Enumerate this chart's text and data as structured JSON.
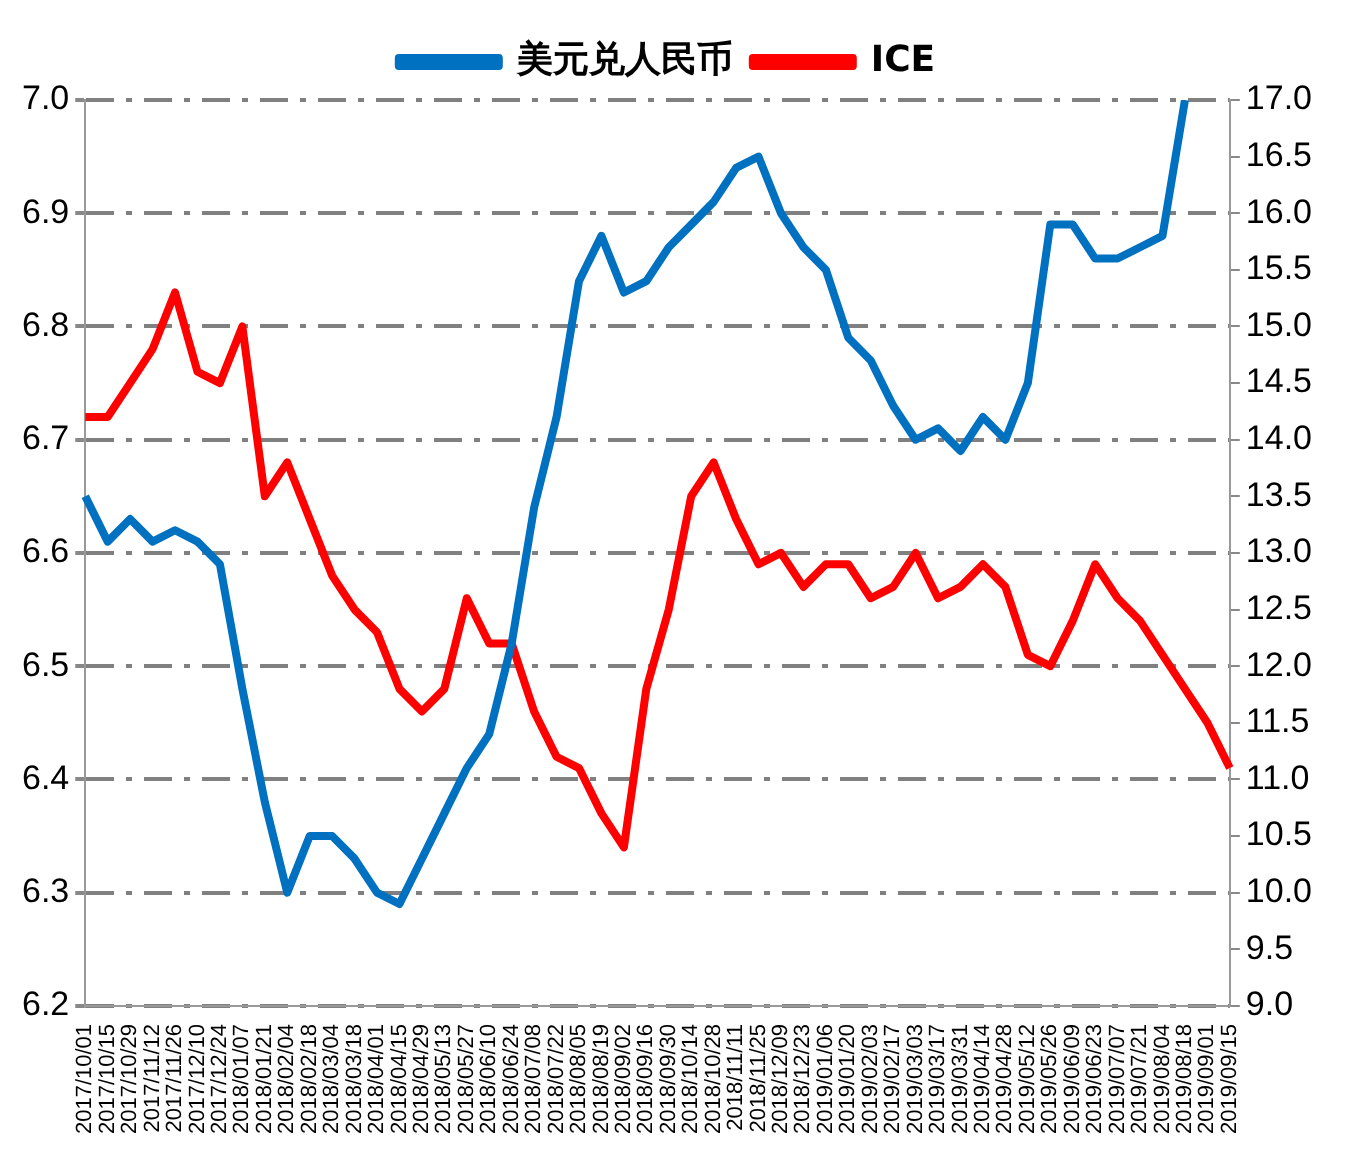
{
  "chart_data": {
    "type": "line",
    "categories": [
      "2017/10/01",
      "2017/10/15",
      "2017/10/29",
      "2017/11/12",
      "2017/11/26",
      "2017/12/10",
      "2017/12/24",
      "2018/01/07",
      "2018/01/21",
      "2018/02/04",
      "2018/02/18",
      "2018/03/04",
      "2018/03/18",
      "2018/04/01",
      "2018/04/15",
      "2018/04/29",
      "2018/05/13",
      "2018/05/27",
      "2018/06/10",
      "2018/06/24",
      "2018/07/08",
      "2018/07/22",
      "2018/08/05",
      "2018/08/19",
      "2018/09/02",
      "2018/09/16",
      "2018/09/30",
      "2018/10/14",
      "2018/10/28",
      "2018/11/11",
      "2018/11/25",
      "2018/12/09",
      "2018/12/23",
      "2019/01/06",
      "2019/01/20",
      "2019/02/03",
      "2019/02/17",
      "2019/03/03",
      "2019/03/17",
      "2019/03/31",
      "2019/04/14",
      "2019/04/28",
      "2019/05/12",
      "2019/05/26",
      "2019/06/09",
      "2019/06/23",
      "2019/07/07",
      "2019/07/21",
      "2019/08/04",
      "2019/08/18",
      "2019/09/01",
      "2019/09/15"
    ],
    "series": [
      {
        "name": "美元兑人民币",
        "color": "#0070c0",
        "values": [
          6.65,
          6.61,
          6.63,
          6.61,
          6.62,
          6.61,
          6.59,
          6.48,
          6.38,
          6.3,
          6.35,
          6.35,
          6.33,
          6.3,
          6.29,
          6.33,
          6.37,
          6.41,
          6.44,
          6.52,
          6.64,
          6.72,
          6.84,
          6.88,
          6.83,
          6.84,
          6.87,
          6.89,
          6.91,
          6.94,
          6.95,
          6.9,
          6.87,
          6.85,
          6.79,
          6.77,
          6.73,
          6.7,
          6.71,
          6.69,
          6.72,
          6.7,
          6.75,
          6.89,
          6.89,
          6.86,
          6.86,
          6.87,
          6.88,
          7.0,
          null,
          null
        ]
      },
      {
        "name": "ICE",
        "color": "#ff0000",
        "axis": "y2",
        "values": [
          14.2,
          14.2,
          14.5,
          14.8,
          15.3,
          14.6,
          14.5,
          15.0,
          13.5,
          13.8,
          13.3,
          12.8,
          12.5,
          12.3,
          11.8,
          11.6,
          11.8,
          12.6,
          12.2,
          12.2,
          11.6,
          11.2,
          11.1,
          10.7,
          10.4,
          11.8,
          12.5,
          13.5,
          13.8,
          13.3,
          12.9,
          13.0,
          12.7,
          12.9,
          12.9,
          12.6,
          12.7,
          13.0,
          12.6,
          12.7,
          12.9,
          12.7,
          12.1,
          12.0,
          12.4,
          12.9,
          12.6,
          12.4,
          12.1,
          11.8,
          11.5,
          11.1
        ]
      }
    ],
    "ylim": [
      6.2,
      7.0
    ],
    "yticks": [
      6.2,
      6.3,
      6.4,
      6.5,
      6.6,
      6.7,
      6.8,
      6.9,
      {
        "value": 7,
        "label": "7.0"
      }
    ],
    "y2lim": [
      9,
      17
    ],
    "y2ticks": [
      {
        "value": 9,
        "label": "9.0"
      },
      9.5,
      {
        "value": 10,
        "label": "10.0"
      },
      10.5,
      {
        "value": 11,
        "label": "11.0"
      },
      11.5,
      {
        "value": 12,
        "label": "12.0"
      },
      12.5,
      {
        "value": 13,
        "label": "13.0"
      },
      13.5,
      {
        "value": 14,
        "label": "14.0"
      },
      14.5,
      {
        "value": 15,
        "label": "15.0"
      },
      15.5,
      {
        "value": 16,
        "label": "16.0"
      },
      16.5,
      {
        "value": 17,
        "label": "17.0"
      }
    ],
    "grid": "y",
    "legend": "top",
    "marker": "none",
    "line_style": "solid"
  }
}
